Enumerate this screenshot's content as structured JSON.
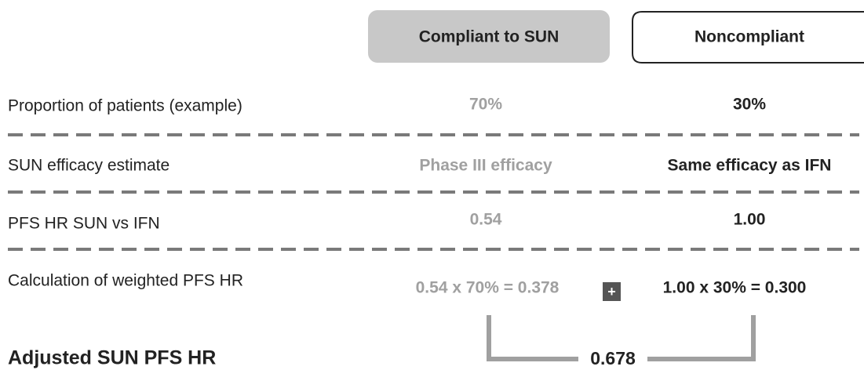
{
  "columns": [
    "Compliant to SUN",
    "Noncompliant"
  ],
  "rows": [
    {
      "label": "Proportion of patients (example)",
      "cells": [
        "70%",
        "30%"
      ]
    },
    {
      "label": "SUN efficacy estimate",
      "cells": [
        "Phase III efficacy",
        "Same efficacy as IFN"
      ]
    },
    {
      "label": "PFS HR SUN vs IFN",
      "cells": [
        "0.54",
        "1.00"
      ]
    },
    {
      "label": "Calculation of weighted PFS HR",
      "cells": [
        "0.54 x 70% = 0.378",
        "1.00 x 30% = 0.300"
      ],
      "operator": "+"
    }
  ],
  "result": {
    "label": "Adjusted SUN PFS HR",
    "value": "0.678"
  }
}
